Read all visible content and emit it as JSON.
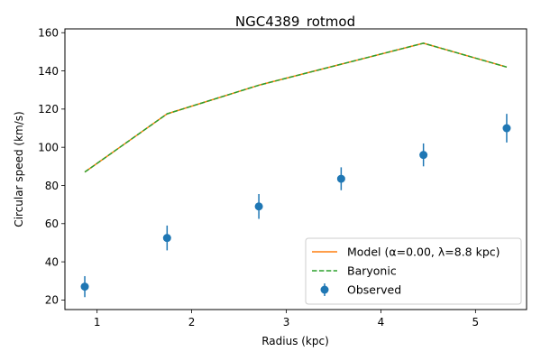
{
  "chart_data": {
    "type": "line",
    "title": "NGC4389_rotmod",
    "xlabel": "Radius (kpc)",
    "ylabel": "Circular speed (km/s)",
    "xlim": [
      0.66,
      5.54
    ],
    "ylim": [
      15,
      162
    ],
    "xticks": [
      1,
      2,
      3,
      4,
      5
    ],
    "yticks": [
      20,
      40,
      60,
      80,
      100,
      120,
      140,
      160
    ],
    "grid": false,
    "legend_position": "lower-right",
    "series": [
      {
        "name": "Model (α=0.00, λ=8.8 kpc)",
        "kind": "line",
        "color": "#ff7f0e",
        "style": "solid",
        "x": [
          0.87,
          1.74,
          2.71,
          3.58,
          4.45,
          5.33
        ],
        "y": [
          87,
          117.5,
          132.5,
          143.5,
          154.5,
          142
        ]
      },
      {
        "name": "Baryonic",
        "kind": "line",
        "color": "#2ca02c",
        "style": "dashed",
        "x": [
          0.87,
          1.74,
          2.71,
          3.58,
          4.45,
          5.33
        ],
        "y": [
          87,
          117.5,
          132.5,
          143.5,
          154.5,
          142
        ]
      },
      {
        "name": "Observed",
        "kind": "errorbar",
        "color": "#1f77b4",
        "x": [
          0.87,
          1.74,
          2.71,
          3.58,
          4.45,
          5.33
        ],
        "y": [
          27,
          52.5,
          69,
          83.5,
          96,
          110
        ],
        "yerr": [
          5.5,
          6.5,
          6.5,
          6,
          6,
          7.5
        ]
      }
    ]
  }
}
